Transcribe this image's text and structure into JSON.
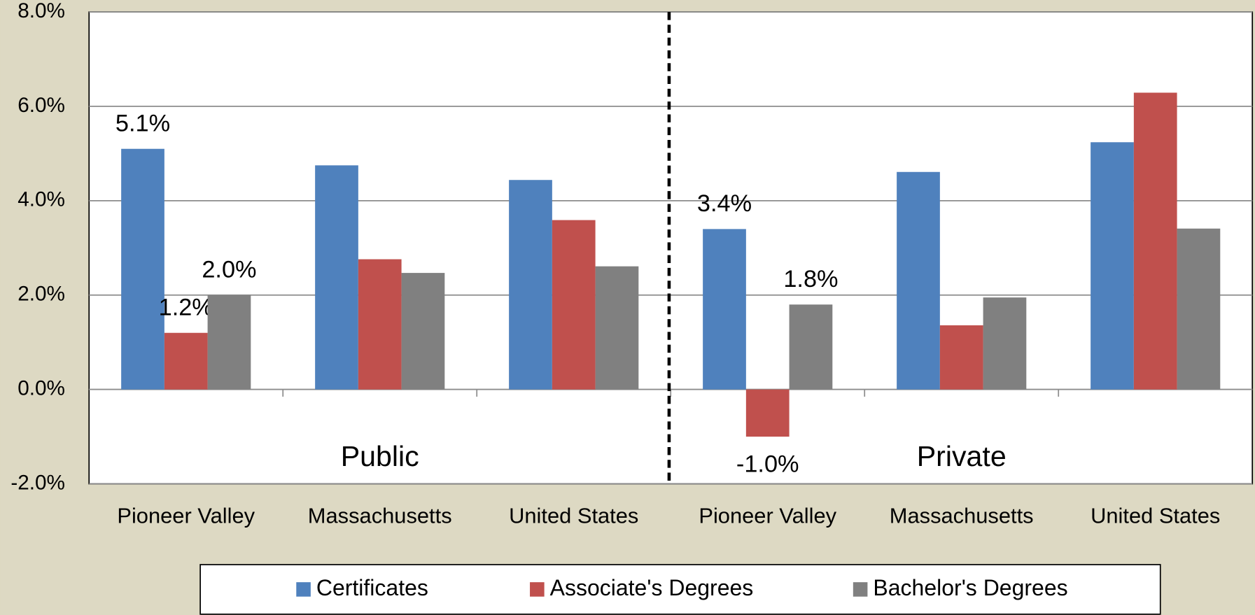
{
  "chart_data": {
    "type": "bar",
    "categories": [
      "Pioneer Valley",
      "Massachusetts",
      "United States",
      "Pioneer Valley",
      "Massachusetts",
      "United States"
    ],
    "series": [
      {
        "name": "Certificates",
        "color": "#4f81bd",
        "values": [
          5.1,
          4.75,
          4.44,
          3.4,
          4.61,
          5.24
        ],
        "value_labels": [
          "5.1%",
          null,
          null,
          "3.4%",
          null,
          null
        ]
      },
      {
        "name": "Associate's Degrees",
        "color": "#c0504d",
        "values": [
          1.2,
          2.76,
          3.59,
          -1.0,
          1.36,
          6.29
        ],
        "value_labels": [
          "1.2%",
          null,
          null,
          "-1.0%",
          null,
          null
        ]
      },
      {
        "name": "Bachelor's Degrees",
        "color": "#808080",
        "values": [
          2.0,
          2.47,
          2.61,
          1.8,
          1.95,
          3.41
        ],
        "value_labels": [
          "2.0%",
          null,
          null,
          "1.8%",
          null,
          null
        ]
      }
    ],
    "annotations": [
      {
        "text": "Public"
      },
      {
        "text": "Private"
      }
    ],
    "ylim": [
      -2,
      8
    ],
    "yticks": [
      {
        "value": -2,
        "label": "-2.0%"
      },
      {
        "value": 0,
        "label": "0.0%"
      },
      {
        "value": 2,
        "label": "2.0%"
      },
      {
        "value": 4,
        "label": "4.0%"
      },
      {
        "value": 6,
        "label": "6.0%"
      },
      {
        "value": 8,
        "label": "8.0%"
      }
    ],
    "grid": true,
    "legend": "bottom"
  }
}
